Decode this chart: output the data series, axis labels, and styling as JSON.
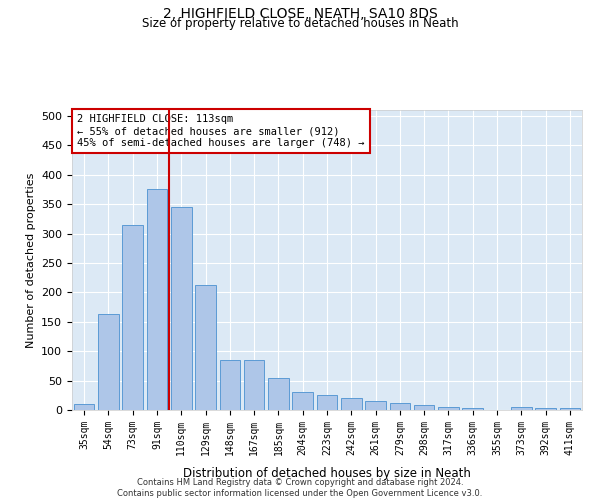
{
  "title": "2, HIGHFIELD CLOSE, NEATH, SA10 8DS",
  "subtitle": "Size of property relative to detached houses in Neath",
  "xlabel": "Distribution of detached houses by size in Neath",
  "ylabel": "Number of detached properties",
  "categories": [
    "35sqm",
    "54sqm",
    "73sqm",
    "91sqm",
    "110sqm",
    "129sqm",
    "148sqm",
    "167sqm",
    "185sqm",
    "204sqm",
    "223sqm",
    "242sqm",
    "261sqm",
    "279sqm",
    "298sqm",
    "317sqm",
    "336sqm",
    "355sqm",
    "373sqm",
    "392sqm",
    "411sqm"
  ],
  "values": [
    10,
    163,
    315,
    375,
    345,
    213,
    85,
    85,
    55,
    30,
    25,
    20,
    15,
    12,
    9,
    5,
    3,
    0,
    5,
    3,
    3
  ],
  "bar_color": "#aec6e8",
  "bar_edge_color": "#5b9bd5",
  "ref_line_color": "#cc0000",
  "ref_line_index": 4,
  "annotation_text": "2 HIGHFIELD CLOSE: 113sqm\n← 55% of detached houses are smaller (912)\n45% of semi-detached houses are larger (748) →",
  "annotation_box_color": "#ffffff",
  "annotation_box_edge": "#cc0000",
  "plot_bg_color": "#dce9f5",
  "footer": "Contains HM Land Registry data © Crown copyright and database right 2024.\nContains public sector information licensed under the Open Government Licence v3.0.",
  "ylim": [
    0,
    510
  ],
  "yticks": [
    0,
    50,
    100,
    150,
    200,
    250,
    300,
    350,
    400,
    450,
    500
  ],
  "title_fontsize": 10,
  "subtitle_fontsize": 8.5
}
